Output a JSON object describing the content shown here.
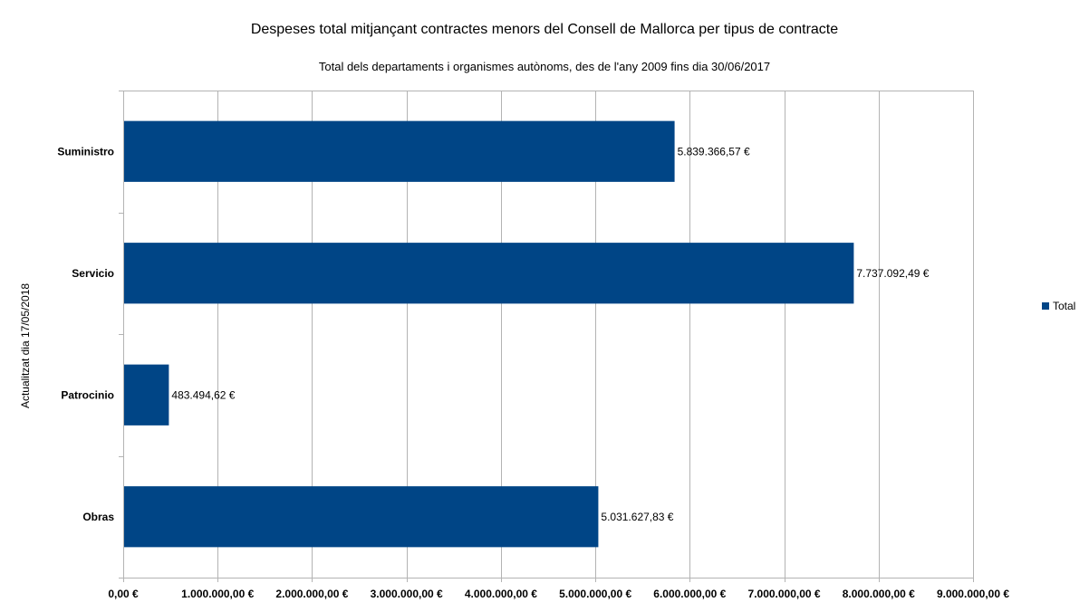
{
  "chart_data": {
    "type": "bar",
    "orientation": "horizontal",
    "title": "Despeses total mitjançant contractes menors del Consell de Mallorca per tipus de contracte",
    "subtitle": "Total dels departaments i organismes autònoms, des de l'any 2009 fins dia 30/06/2017",
    "ylabel": "Actualitzat dia 17/05/2018",
    "xlabel": "",
    "categories": [
      "Suministro",
      "Servicio",
      "Patrocinio",
      "Obras"
    ],
    "series": [
      {
        "name": "Total",
        "color": "#004586",
        "values": [
          5839366.57,
          7737092.49,
          483494.62,
          5031627.83
        ],
        "labels": [
          "5.839.366,57 €",
          "7.737.092,49 €",
          "483.494,62 €",
          "5.031.627,83 €"
        ]
      }
    ],
    "xlim": [
      0,
      9000000
    ],
    "ticks": [
      0,
      1000000,
      2000000,
      3000000,
      4000000,
      5000000,
      6000000,
      7000000,
      8000000,
      9000000
    ],
    "tick_labels": [
      "0,00 €",
      "1.000.000,00 €",
      "2.000.000,00 €",
      "3.000.000,00 €",
      "4.000.000,00 €",
      "5.000.000,00 €",
      "6.000.000,00 €",
      "7.000.000,00 €",
      "8.000.000,00 €",
      "9.000.000,00 €"
    ],
    "grid": true,
    "legend_position": "right"
  }
}
